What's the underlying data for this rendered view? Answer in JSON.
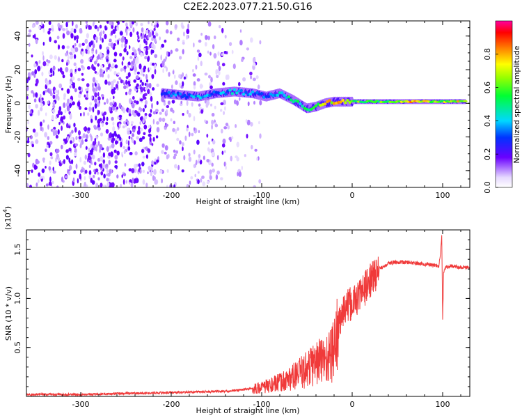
{
  "title": "C2E2.2023.077.21.50.G16",
  "colors": {
    "snr_line": "#f03a3a",
    "axis": "#000000",
    "background": "#ffffff"
  },
  "chart_data": [
    {
      "type": "heatmap",
      "title": "",
      "xlabel": "Height of straight line (km)",
      "ylabel": "Frequency (Hz)",
      "xlim": [
        -360,
        130
      ],
      "ylim": [
        -50,
        49
      ],
      "x_ticks": [
        -300,
        -200,
        -100,
        0,
        100
      ],
      "y_ticks": [
        -40,
        -20,
        0,
        20,
        40
      ],
      "colorbar": {
        "label": "Normalized spectral amplitude",
        "range": [
          0.0,
          1.0
        ],
        "ticks": [
          0.0,
          0.2,
          0.4,
          0.6,
          0.8
        ],
        "tick_labels": [
          "0.0",
          "0.2",
          "0.4",
          "0.6",
          "0.8"
        ]
      },
      "noise_region_km": [
        -360,
        -120
      ],
      "signal_track": [
        {
          "x": -210,
          "y": 6,
          "amp": 0.3
        },
        {
          "x": -190,
          "y": 5,
          "amp": 0.35
        },
        {
          "x": -170,
          "y": 4,
          "amp": 0.4
        },
        {
          "x": -150,
          "y": 6,
          "amp": 0.35
        },
        {
          "x": -130,
          "y": 7,
          "amp": 0.4
        },
        {
          "x": -110,
          "y": 6,
          "amp": 0.35
        },
        {
          "x": -95,
          "y": 4,
          "amp": 0.35
        },
        {
          "x": -80,
          "y": 6,
          "amp": 0.4
        },
        {
          "x": -65,
          "y": 2,
          "amp": 0.5
        },
        {
          "x": -50,
          "y": -3,
          "amp": 0.5
        },
        {
          "x": -40,
          "y": -2,
          "amp": 0.6
        },
        {
          "x": -30,
          "y": 0,
          "amp": 0.7
        },
        {
          "x": -20,
          "y": 1,
          "amp": 0.75
        },
        {
          "x": -5,
          "y": 1,
          "amp": 0.7
        },
        {
          "x": 10,
          "y": 1,
          "amp": 0.6
        },
        {
          "x": 30,
          "y": 1,
          "amp": 0.6
        },
        {
          "x": 50,
          "y": 1,
          "amp": 0.65
        },
        {
          "x": 70,
          "y": 1,
          "amp": 0.85
        },
        {
          "x": 90,
          "y": 1,
          "amp": 0.6
        },
        {
          "x": 110,
          "y": 1,
          "amp": 0.7
        },
        {
          "x": 125,
          "y": 1,
          "amp": 0.75
        }
      ]
    },
    {
      "type": "line",
      "title": "",
      "xlabel": "Height of straight line (km)",
      "ylabel": "SNR (10 * v/v)",
      "y_scale_label": "(x10",
      "y_scale_exponent": "4",
      "xlim": [
        -360,
        130
      ],
      "ylim": [
        0.0,
        1.7
      ],
      "x_ticks": [
        -300,
        -200,
        -100,
        0,
        100
      ],
      "y_ticks": [
        0.5,
        1.0,
        1.5
      ],
      "y_tick_labels": [
        "0.5",
        "1.0",
        "1.5"
      ],
      "series": [
        {
          "name": "SNR",
          "x": [
            -360,
            -300,
            -250,
            -200,
            -150,
            -140,
            -120,
            -100,
            -80,
            -70,
            -60,
            -50,
            -40,
            -30,
            -25,
            -20,
            -15,
            -10,
            0,
            10,
            20,
            30,
            40,
            50,
            60,
            70,
            80,
            90,
            96,
            98,
            99,
            100,
            101,
            103,
            110,
            120,
            130
          ],
          "y": [
            0.02,
            0.02,
            0.03,
            0.04,
            0.05,
            0.05,
            0.07,
            0.09,
            0.14,
            0.18,
            0.22,
            0.28,
            0.35,
            0.38,
            0.4,
            0.5,
            0.7,
            0.88,
            0.95,
            1.05,
            1.18,
            1.3,
            1.36,
            1.37,
            1.37,
            1.36,
            1.35,
            1.34,
            1.33,
            1.5,
            1.65,
            0.78,
            1.25,
            1.32,
            1.33,
            1.32,
            1.32
          ]
        }
      ]
    }
  ]
}
